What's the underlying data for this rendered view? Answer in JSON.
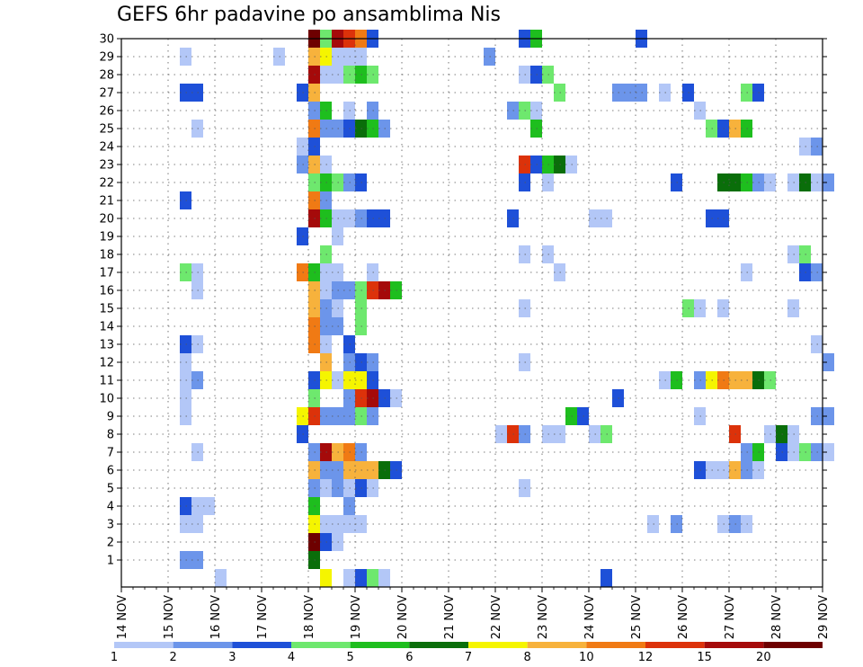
{
  "chart_data": {
    "type": "heatmap",
    "title": "GEFS 6hr padavine po ansamblima Nis",
    "xlabel": "",
    "ylabel": "",
    "x_tick_labels": [
      "14 NOV",
      "15 NOV",
      "16 NOV",
      "17 NOV",
      "18 NOV",
      "19 NOV",
      "20 NOV",
      "21 NOV",
      "22 NOV",
      "23 NOV",
      "24 NOV",
      "25 NOV",
      "26 NOV",
      "27 NOV",
      "28 NOV",
      "29 NOV"
    ],
    "y_tick_labels": [
      "1",
      "2",
      "3",
      "4",
      "5",
      "6",
      "7",
      "8",
      "9",
      "10",
      "11",
      "12",
      "13",
      "14",
      "15",
      "16",
      "17",
      "18",
      "19",
      "20",
      "21",
      "22",
      "23",
      "24",
      "25",
      "26",
      "27",
      "28",
      "29",
      "30"
    ],
    "x_unit": "6-hour step (0 = 14 NOV 00z, 4 steps per day)",
    "x_range": [
      0,
      60
    ],
    "y_range": [
      0,
      30
    ],
    "grid": true,
    "color_scale": {
      "labels": [
        "1",
        "2",
        "3",
        "4",
        "5",
        "6",
        "7",
        "8",
        "10",
        "12",
        "15",
        "20"
      ],
      "colors": [
        "#b3c7f7",
        "#6c95ea",
        "#1e50d8",
        "#6ee86e",
        "#1ebe1e",
        "#0a6e0a",
        "#f5f500",
        "#f7b23c",
        "#f07a14",
        "#dc320a",
        "#a50a0a",
        "#6e0000"
      ]
    },
    "cells": [
      [
        16,
        30,
        11
      ],
      [
        17,
        30,
        3
      ],
      [
        18,
        30,
        10
      ],
      [
        19,
        30,
        9
      ],
      [
        20,
        30,
        8
      ],
      [
        21,
        30,
        2
      ],
      [
        34,
        30,
        2
      ],
      [
        35,
        30,
        4
      ],
      [
        44,
        30,
        2
      ],
      [
        5,
        29,
        0
      ],
      [
        13,
        29,
        0
      ],
      [
        16,
        29,
        7
      ],
      [
        17,
        29,
        6
      ],
      [
        18,
        29,
        0
      ],
      [
        19,
        29,
        0
      ],
      [
        20,
        29,
        0
      ],
      [
        31,
        29,
        1
      ],
      [
        16,
        28,
        10
      ],
      [
        17,
        28,
        0
      ],
      [
        18,
        28,
        0
      ],
      [
        19,
        28,
        3
      ],
      [
        20,
        28,
        4
      ],
      [
        21,
        28,
        3
      ],
      [
        34,
        28,
        0
      ],
      [
        35,
        28,
        2
      ],
      [
        36,
        28,
        3
      ],
      [
        5,
        27,
        2
      ],
      [
        6,
        27,
        2
      ],
      [
        15,
        27,
        2
      ],
      [
        16,
        27,
        7
      ],
      [
        37,
        27,
        3
      ],
      [
        42,
        27,
        1
      ],
      [
        43,
        27,
        1
      ],
      [
        44,
        27,
        1
      ],
      [
        46,
        27,
        0
      ],
      [
        48,
        27,
        2
      ],
      [
        53,
        27,
        3
      ],
      [
        54,
        27,
        2
      ],
      [
        16,
        26,
        1
      ],
      [
        17,
        26,
        4
      ],
      [
        19,
        26,
        0
      ],
      [
        21,
        26,
        1
      ],
      [
        33,
        26,
        1
      ],
      [
        34,
        26,
        3
      ],
      [
        35,
        26,
        0
      ],
      [
        49,
        26,
        0
      ],
      [
        6,
        25,
        0
      ],
      [
        16,
        25,
        8
      ],
      [
        17,
        25,
        1
      ],
      [
        18,
        25,
        1
      ],
      [
        19,
        25,
        2
      ],
      [
        20,
        25,
        5
      ],
      [
        21,
        25,
        4
      ],
      [
        22,
        25,
        1
      ],
      [
        35,
        25,
        4
      ],
      [
        50,
        25,
        3
      ],
      [
        51,
        25,
        2
      ],
      [
        52,
        25,
        7
      ],
      [
        53,
        25,
        4
      ],
      [
        15,
        24,
        0
      ],
      [
        16,
        24,
        2
      ],
      [
        58,
        24,
        0
      ],
      [
        59,
        24,
        1
      ],
      [
        15,
        23,
        1
      ],
      [
        16,
        23,
        7
      ],
      [
        17,
        23,
        0
      ],
      [
        34,
        23,
        9
      ],
      [
        35,
        23,
        2
      ],
      [
        36,
        23,
        4
      ],
      [
        37,
        23,
        5
      ],
      [
        38,
        23,
        0
      ],
      [
        16,
        22,
        3
      ],
      [
        17,
        22,
        4
      ],
      [
        18,
        22,
        3
      ],
      [
        19,
        22,
        1
      ],
      [
        20,
        22,
        2
      ],
      [
        34,
        22,
        2
      ],
      [
        36,
        22,
        0
      ],
      [
        47,
        22,
        2
      ],
      [
        51,
        22,
        5
      ],
      [
        52,
        22,
        5
      ],
      [
        53,
        22,
        4
      ],
      [
        54,
        22,
        1
      ],
      [
        55,
        22,
        0
      ],
      [
        57,
        22,
        0
      ],
      [
        58,
        22,
        5
      ],
      [
        59,
        22,
        0
      ],
      [
        60,
        22,
        1
      ],
      [
        5,
        21,
        2
      ],
      [
        16,
        21,
        8
      ],
      [
        17,
        21,
        1
      ],
      [
        16,
        20,
        10
      ],
      [
        17,
        20,
        4
      ],
      [
        18,
        20,
        0
      ],
      [
        19,
        20,
        0
      ],
      [
        20,
        20,
        1
      ],
      [
        21,
        20,
        2
      ],
      [
        22,
        20,
        2
      ],
      [
        33,
        20,
        2
      ],
      [
        40,
        20,
        0
      ],
      [
        41,
        20,
        0
      ],
      [
        50,
        20,
        2
      ],
      [
        51,
        20,
        2
      ],
      [
        15,
        19,
        2
      ],
      [
        18,
        19,
        0
      ],
      [
        17,
        18,
        3
      ],
      [
        34,
        18,
        0
      ],
      [
        36,
        18,
        0
      ],
      [
        57,
        18,
        0
      ],
      [
        58,
        18,
        3
      ],
      [
        5,
        17,
        3
      ],
      [
        6,
        17,
        0
      ],
      [
        15,
        17,
        8
      ],
      [
        16,
        17,
        4
      ],
      [
        17,
        17,
        0
      ],
      [
        18,
        17,
        0
      ],
      [
        21,
        17,
        0
      ],
      [
        37,
        17,
        0
      ],
      [
        53,
        17,
        0
      ],
      [
        58,
        17,
        2
      ],
      [
        59,
        17,
        1
      ],
      [
        6,
        16,
        0
      ],
      [
        16,
        16,
        7
      ],
      [
        17,
        16,
        0
      ],
      [
        18,
        16,
        1
      ],
      [
        19,
        16,
        1
      ],
      [
        20,
        16,
        3
      ],
      [
        21,
        16,
        9
      ],
      [
        22,
        16,
        10
      ],
      [
        23,
        16,
        4
      ],
      [
        16,
        15,
        7
      ],
      [
        17,
        15,
        1
      ],
      [
        18,
        15,
        0
      ],
      [
        20,
        15,
        3
      ],
      [
        34,
        15,
        0
      ],
      [
        48,
        15,
        3
      ],
      [
        49,
        15,
        0
      ],
      [
        51,
        15,
        0
      ],
      [
        57,
        15,
        0
      ],
      [
        16,
        14,
        8
      ],
      [
        17,
        14,
        1
      ],
      [
        18,
        14,
        1
      ],
      [
        20,
        14,
        3
      ],
      [
        5,
        13,
        2
      ],
      [
        6,
        13,
        0
      ],
      [
        16,
        13,
        8
      ],
      [
        17,
        13,
        0
      ],
      [
        19,
        13,
        2
      ],
      [
        59,
        13,
        0
      ],
      [
        5,
        12,
        0
      ],
      [
        17,
        12,
        7
      ],
      [
        19,
        12,
        1
      ],
      [
        20,
        12,
        2
      ],
      [
        21,
        12,
        1
      ],
      [
        34,
        12,
        0
      ],
      [
        60,
        12,
        1
      ],
      [
        5,
        11,
        0
      ],
      [
        6,
        11,
        1
      ],
      [
        16,
        11,
        2
      ],
      [
        17,
        11,
        6
      ],
      [
        18,
        11,
        0
      ],
      [
        19,
        11,
        6
      ],
      [
        20,
        11,
        6
      ],
      [
        21,
        11,
        2
      ],
      [
        46,
        11,
        0
      ],
      [
        47,
        11,
        4
      ],
      [
        49,
        11,
        1
      ],
      [
        50,
        11,
        6
      ],
      [
        51,
        11,
        8
      ],
      [
        52,
        11,
        7
      ],
      [
        53,
        11,
        7
      ],
      [
        54,
        11,
        5
      ],
      [
        55,
        11,
        3
      ],
      [
        5,
        10,
        0
      ],
      [
        16,
        10,
        3
      ],
      [
        19,
        10,
        1
      ],
      [
        20,
        10,
        9
      ],
      [
        21,
        10,
        10
      ],
      [
        22,
        10,
        2
      ],
      [
        23,
        10,
        0
      ],
      [
        42,
        10,
        2
      ],
      [
        5,
        9,
        0
      ],
      [
        15,
        9,
        6
      ],
      [
        16,
        9,
        9
      ],
      [
        17,
        9,
        1
      ],
      [
        18,
        9,
        1
      ],
      [
        19,
        9,
        1
      ],
      [
        20,
        9,
        3
      ],
      [
        21,
        9,
        1
      ],
      [
        38,
        9,
        4
      ],
      [
        39,
        9,
        2
      ],
      [
        49,
        9,
        0
      ],
      [
        59,
        9,
        1
      ],
      [
        60,
        9,
        1
      ],
      [
        15,
        8,
        2
      ],
      [
        32,
        8,
        0
      ],
      [
        33,
        8,
        9
      ],
      [
        34,
        8,
        1
      ],
      [
        36,
        8,
        0
      ],
      [
        37,
        8,
        0
      ],
      [
        40,
        8,
        0
      ],
      [
        41,
        8,
        3
      ],
      [
        52,
        8,
        9
      ],
      [
        55,
        8,
        0
      ],
      [
        56,
        8,
        5
      ],
      [
        57,
        8,
        0
      ],
      [
        6,
        7,
        0
      ],
      [
        16,
        7,
        1
      ],
      [
        17,
        7,
        10
      ],
      [
        18,
        7,
        7
      ],
      [
        19,
        7,
        8
      ],
      [
        20,
        7,
        1
      ],
      [
        53,
        7,
        1
      ],
      [
        54,
        7,
        4
      ],
      [
        56,
        7,
        2
      ],
      [
        57,
        7,
        0
      ],
      [
        58,
        7,
        3
      ],
      [
        59,
        7,
        1
      ],
      [
        60,
        7,
        0
      ],
      [
        16,
        6,
        7
      ],
      [
        17,
        6,
        1
      ],
      [
        18,
        6,
        1
      ],
      [
        19,
        6,
        7
      ],
      [
        20,
        6,
        7
      ],
      [
        21,
        6,
        7
      ],
      [
        22,
        6,
        5
      ],
      [
        23,
        6,
        2
      ],
      [
        49,
        6,
        2
      ],
      [
        50,
        6,
        0
      ],
      [
        51,
        6,
        0
      ],
      [
        52,
        6,
        7
      ],
      [
        53,
        6,
        1
      ],
      [
        54,
        6,
        0
      ],
      [
        16,
        5,
        1
      ],
      [
        17,
        5,
        0
      ],
      [
        18,
        5,
        1
      ],
      [
        19,
        5,
        0
      ],
      [
        20,
        5,
        2
      ],
      [
        21,
        5,
        0
      ],
      [
        34,
        5,
        0
      ],
      [
        16,
        4,
        4
      ],
      [
        19,
        4,
        1
      ],
      [
        5,
        4,
        2
      ],
      [
        6,
        4,
        0
      ],
      [
        7,
        4,
        0
      ],
      [
        5,
        3,
        0
      ],
      [
        6,
        3,
        0
      ],
      [
        16,
        3,
        6
      ],
      [
        17,
        3,
        0
      ],
      [
        18,
        3,
        0
      ],
      [
        19,
        3,
        0
      ],
      [
        20,
        3,
        0
      ],
      [
        45,
        3,
        0
      ],
      [
        47,
        3,
        1
      ],
      [
        51,
        3,
        0
      ],
      [
        52,
        3,
        1
      ],
      [
        53,
        3,
        0
      ],
      [
        16,
        2,
        11
      ],
      [
        17,
        2,
        2
      ],
      [
        18,
        2,
        0
      ],
      [
        5,
        1,
        1
      ],
      [
        6,
        1,
        1
      ],
      [
        16,
        1,
        5
      ],
      [
        8,
        0,
        0
      ],
      [
        17,
        0,
        6
      ],
      [
        19,
        0,
        0
      ],
      [
        20,
        0,
        2
      ],
      [
        21,
        0,
        3
      ],
      [
        22,
        0,
        0
      ],
      [
        41,
        0,
        2
      ]
    ]
  }
}
